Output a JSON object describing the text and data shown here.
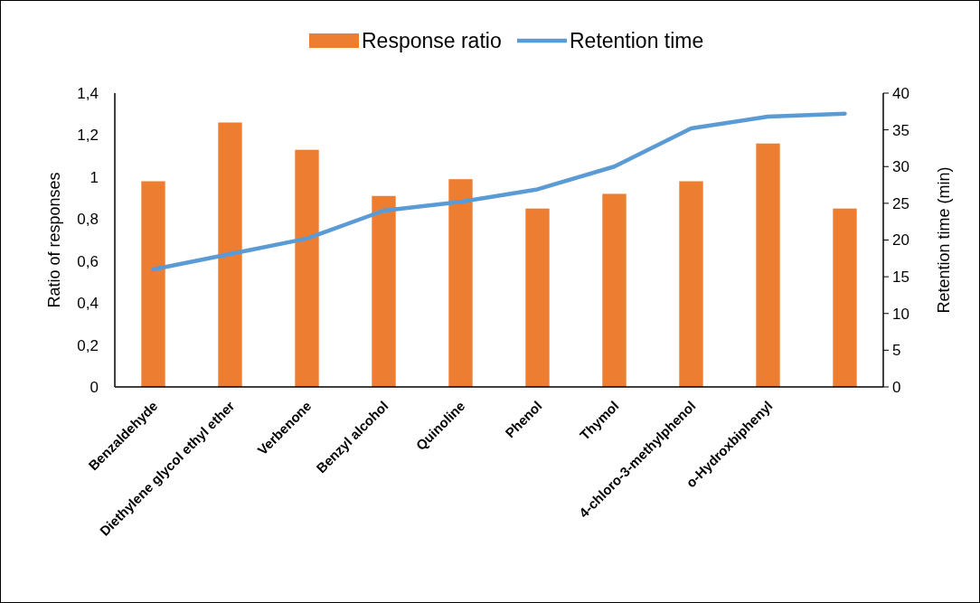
{
  "chart_data": {
    "type": "bar",
    "categories": [
      "Benzaldehyde",
      "Diethylene glycol ethyl ether",
      "Verbenone",
      "Benzyl alcohol",
      "Quinoline",
      "Phenol",
      "Thymol",
      "4-chloro-3-methylphenol",
      "o-Hydroxbiphenyl",
      null
    ],
    "series": [
      {
        "name": "Response ratio",
        "color": "#ed7d31",
        "values": [
          0.98,
          1.26,
          1.13,
          0.91,
          0.99,
          0.85,
          0.92,
          0.98,
          1.16,
          0.85
        ]
      },
      {
        "name": "Retention time",
        "type": "line",
        "axis": "y2",
        "color": "#5b9bd5",
        "values": [
          16.0,
          18.1,
          20.2,
          24.0,
          25.2,
          26.9,
          30.0,
          35.2,
          36.8,
          37.2
        ]
      }
    ],
    "ylabel": "Ratio of responses",
    "y2label": "Retention time (min)",
    "ylim": [
      0,
      1.4
    ],
    "yticks": [
      {
        "value": 0,
        "label": "0"
      },
      {
        "value": 0.2,
        "label": "0,2"
      },
      {
        "value": 0.4,
        "label": "0,4"
      },
      {
        "value": 0.6,
        "label": "0,6"
      },
      {
        "value": 0.8,
        "label": "0,8"
      },
      {
        "value": 1,
        "label": "1"
      },
      {
        "value": 1.2,
        "label": "1,2"
      },
      {
        "value": 1.4,
        "label": "1,4"
      }
    ],
    "y2lim": [
      0,
      40
    ],
    "y2ticks": [
      0,
      5,
      10,
      15,
      20,
      25,
      30,
      35,
      40
    ],
    "legend": "top",
    "grid": false
  }
}
